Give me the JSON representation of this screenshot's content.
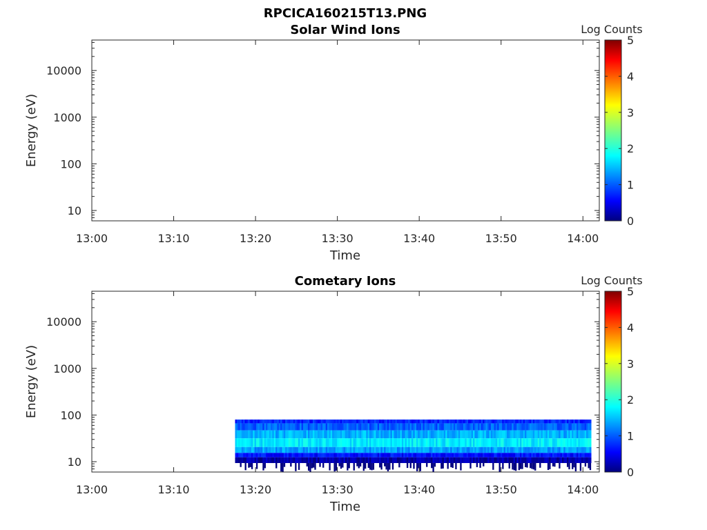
{
  "figure_title": "RPCICA160215T13.PNG",
  "chart_data": [
    {
      "type": "heatmap",
      "title": "Solar Wind Ions",
      "xlabel": "Time",
      "ylabel": "Energy (eV)",
      "x_ticks": [
        "13:00",
        "13:10",
        "13:20",
        "13:30",
        "13:40",
        "13:50",
        "14:00"
      ],
      "y_ticks": [
        "10",
        "100",
        "1000",
        "10000"
      ],
      "y_scale": "log",
      "xlim": [
        "13:00",
        "14:02"
      ],
      "ylim": [
        6,
        45000
      ],
      "colorbar": {
        "label": "Log Counts",
        "range": [
          0,
          5
        ],
        "ticks": [
          "0",
          "1",
          "2",
          "3",
          "4",
          "5"
        ],
        "colormap": "jet"
      },
      "data": []
    },
    {
      "type": "heatmap",
      "title": "Cometary Ions",
      "xlabel": "Time",
      "ylabel": "Energy (eV)",
      "x_ticks": [
        "13:00",
        "13:10",
        "13:20",
        "13:30",
        "13:40",
        "13:50",
        "14:00"
      ],
      "y_ticks": [
        "10",
        "100",
        "1000",
        "10000"
      ],
      "y_scale": "log",
      "xlim": [
        "13:00",
        "14:02"
      ],
      "ylim": [
        6,
        45000
      ],
      "colorbar": {
        "label": "Log Counts",
        "range": [
          0,
          5
        ],
        "ticks": [
          "0",
          "1",
          "2",
          "3",
          "4",
          "5"
        ],
        "colormap": "jet"
      },
      "data": [
        {
          "time_start": "13:17:30",
          "time_end": "14:01:00",
          "energy_min": 6,
          "energy_max": 80,
          "peak_energy": 25,
          "peak_log_counts": 1.8
        }
      ],
      "band_profile": [
        {
          "energy": 80,
          "log_counts": 0.8
        },
        {
          "energy": 55,
          "log_counts": 1.1
        },
        {
          "energy": 40,
          "log_counts": 1.5
        },
        {
          "energy": 25,
          "log_counts": 1.8
        },
        {
          "energy": 17,
          "log_counts": 1.4
        },
        {
          "energy": 14,
          "log_counts": 0.7
        },
        {
          "energy": 11,
          "log_counts": 0.2
        }
      ]
    }
  ]
}
